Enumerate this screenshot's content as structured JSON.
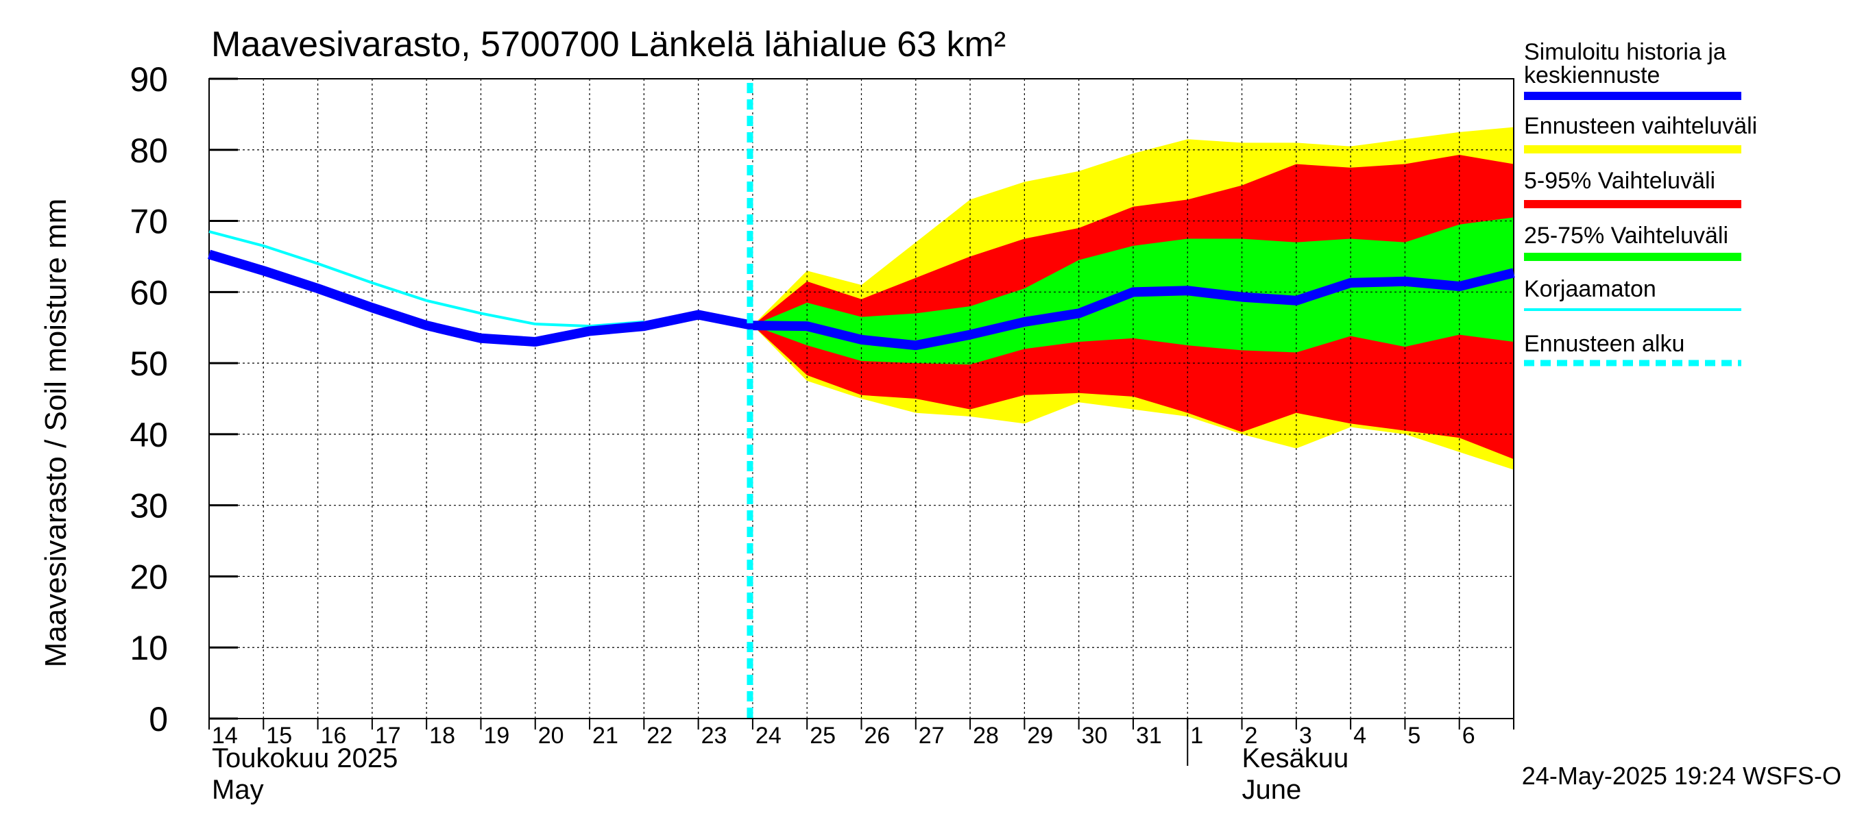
{
  "chart_data": {
    "type": "area",
    "title": "Maavesivarasto, 5700700 Länkelä lähialue 63 km²",
    "ylabel": "Maavesivarasto / Soil moisture   mm",
    "ylim": [
      0,
      90
    ],
    "yticks": [
      0,
      10,
      20,
      30,
      40,
      50,
      60,
      70,
      80,
      90
    ],
    "x_day_start": 14,
    "x_day_end": 38,
    "xtick_labels": [
      "14",
      "15",
      "16",
      "17",
      "18",
      "19",
      "20",
      "21",
      "22",
      "23",
      "24",
      "25",
      "26",
      "27",
      "28",
      "29",
      "30",
      "31",
      "1",
      "2",
      "3",
      "4",
      "5",
      "6"
    ],
    "month_labels": [
      {
        "fi": "Toukokuu  2025",
        "en": "May"
      },
      {
        "fi": "Kesäkuu",
        "en": "June"
      }
    ],
    "forecast_start_day": 23.95,
    "series": [
      {
        "name": "Ennusteen vaihteluväli",
        "color": "#ffff00",
        "x": [
          24,
          25,
          26,
          27,
          28,
          29,
          30,
          31,
          32,
          33,
          34,
          35,
          36,
          37,
          38
        ],
        "upper": [
          55.3,
          63,
          61,
          67,
          73,
          75.5,
          77,
          79.5,
          81.5,
          81,
          81,
          80.5,
          81.5,
          82.5,
          83.2
        ],
        "lower": [
          55.3,
          47.5,
          45,
          43,
          42.5,
          41.5,
          44.5,
          43.5,
          42.5,
          40,
          38,
          41,
          40,
          37.5,
          35
        ]
      },
      {
        "name": "5-95% Vaihteluväli",
        "color": "#ff0000",
        "x": [
          24,
          25,
          26,
          27,
          28,
          29,
          30,
          31,
          32,
          33,
          34,
          35,
          36,
          37,
          38
        ],
        "upper": [
          55.3,
          61.5,
          59,
          62,
          65,
          67.5,
          69,
          72,
          73,
          75,
          78,
          77.5,
          78,
          79.3,
          78
        ],
        "lower": [
          55.3,
          48.3,
          45.5,
          45,
          43.5,
          45.5,
          45.8,
          45.3,
          43,
          40.3,
          43,
          41.5,
          40.5,
          39.5,
          36.5
        ]
      },
      {
        "name": "25-75% Vaihteluväli",
        "color": "#00ff00",
        "x": [
          24,
          25,
          26,
          27,
          28,
          29,
          30,
          31,
          32,
          33,
          34,
          35,
          36,
          37,
          38
        ],
        "upper": [
          55.3,
          58.5,
          56.5,
          57,
          58,
          60.5,
          64.5,
          66.5,
          67.5,
          67.5,
          67,
          67.5,
          67,
          69.5,
          70.5
        ],
        "lower": [
          55.3,
          52.5,
          50.3,
          50,
          49.8,
          52,
          53,
          53.5,
          52.5,
          51.8,
          51.5,
          53.8,
          52.3,
          54,
          53
        ]
      },
      {
        "name": "Korjaamaton",
        "color": "#00ffff",
        "x": [
          14,
          15,
          16,
          17,
          18,
          19,
          20,
          21,
          22
        ],
        "values": [
          68.5,
          66.5,
          64,
          61.3,
          58.8,
          57,
          55.5,
          55.2,
          55.8
        ]
      },
      {
        "name": "Simuloitu historia ja keskiennuste",
        "color": "#0000ff",
        "x": [
          14,
          15,
          16,
          17,
          18,
          19,
          20,
          21,
          22,
          23,
          24,
          25,
          26,
          27,
          28,
          29,
          30,
          31,
          32,
          33,
          34,
          35,
          36,
          37,
          38
        ],
        "values": [
          65.3,
          63,
          60.5,
          57.8,
          55.3,
          53.5,
          53,
          54.5,
          55.2,
          56.8,
          55.3,
          55.2,
          53.3,
          52.5,
          54,
          55.8,
          57,
          60,
          60.2,
          59.3,
          58.8,
          61.3,
          61.5,
          60.8,
          62.7
        ]
      }
    ],
    "legend": [
      {
        "label_lines": [
          "Simuloitu historia ja",
          "keskiennuste"
        ],
        "color": "#0000ff",
        "style": "thick"
      },
      {
        "label_lines": [
          "Ennusteen vaihteluväli"
        ],
        "color": "#ffff00",
        "style": "band"
      },
      {
        "label_lines": [
          "5-95% Vaihteluväli"
        ],
        "color": "#ff0000",
        "style": "band"
      },
      {
        "label_lines": [
          "25-75% Vaihteluväli"
        ],
        "color": "#00ff00",
        "style": "band"
      },
      {
        "label_lines": [
          "Korjaamaton"
        ],
        "color": "#00ffff",
        "style": "thin"
      },
      {
        "label_lines": [
          "Ennusteen alku"
        ],
        "color": "#00ffff",
        "style": "dashed"
      }
    ],
    "footer": "24-May-2025 19:24 WSFS-O"
  }
}
